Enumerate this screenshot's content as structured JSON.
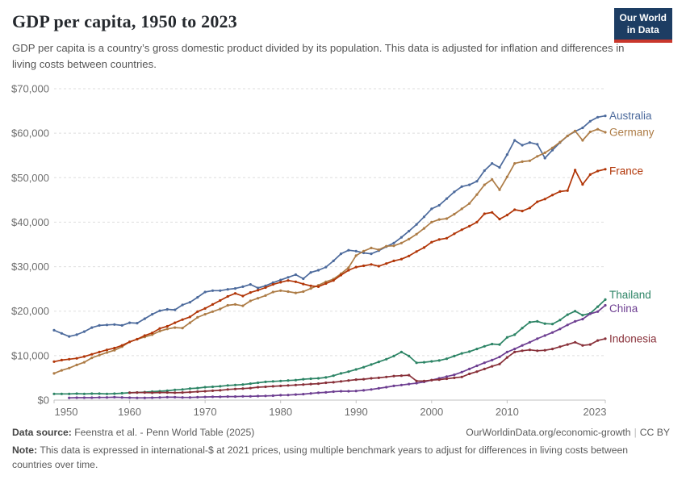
{
  "header": {
    "title": "GDP per capita, 1950 to 2023",
    "subtitle": "GDP per capita is a country’s gross domestic product divided by its population. This data is adjusted for inflation and differences in living costs between countries.",
    "logo_line1": "Our World",
    "logo_line2": "in Data",
    "logo_bg": "#1d3d63",
    "logo_accent": "#c9372c"
  },
  "footer": {
    "source_label": "Data source:",
    "source_text": " Feenstra et al. - Penn World Table (2025)",
    "url_label": "OurWorldinData.org/economic-growth",
    "license": "CC BY",
    "note_label": "Note:",
    "note_text": " This data is expressed in international-$ at 2021 prices, using multiple benchmark years to adjust for differences in living costs between countries over time."
  },
  "chart_data": {
    "type": "line",
    "title": "GDP per capita, 1950 to 2023",
    "xlabel": "",
    "ylabel": "",
    "xlim": [
      1950,
      2023
    ],
    "ylim": [
      0,
      70000
    ],
    "grid": "horizontal-dashed",
    "legend_position": "right-end-labels",
    "x_ticks": [
      1950,
      1960,
      1970,
      1980,
      1990,
      2000,
      2010,
      2023
    ],
    "y_ticks": [
      0,
      10000,
      20000,
      30000,
      40000,
      50000,
      60000,
      70000
    ],
    "y_tick_labels": [
      "$0",
      "$10,000",
      "$20,000",
      "$30,000",
      "$40,000",
      "$50,000",
      "$60,000",
      "$70,000"
    ],
    "series": [
      {
        "name": "Australia",
        "color": "#4C6A9C",
        "start_year": 1950,
        "label_dy": 0,
        "values": [
          15700,
          15000,
          14300,
          14700,
          15400,
          16300,
          16800,
          16900,
          17000,
          16800,
          17400,
          17300,
          18300,
          19300,
          20100,
          20400,
          20300,
          21400,
          22000,
          23100,
          24300,
          24600,
          24600,
          24900,
          25100,
          25500,
          26000,
          25200,
          25700,
          26400,
          27000,
          27600,
          28200,
          27300,
          28700,
          29200,
          29900,
          31300,
          32900,
          33700,
          33500,
          33100,
          32900,
          33600,
          34500,
          35300,
          36600,
          38000,
          39500,
          41200,
          43000,
          43800,
          45300,
          46800,
          48000,
          48400,
          49200,
          51600,
          53200,
          52300,
          55200,
          58400,
          57300,
          57900,
          57500,
          54400,
          56200,
          57900,
          59400,
          60400,
          61200,
          62700,
          63600,
          63900
        ]
      },
      {
        "name": "Germany",
        "color": "#AD7C46",
        "start_year": 1950,
        "label_dy": 0,
        "values": [
          6000,
          6700,
          7200,
          7900,
          8500,
          9500,
          10100,
          10700,
          11200,
          12000,
          13100,
          13700,
          14200,
          14700,
          15500,
          16000,
          16300,
          16200,
          17400,
          18600,
          19300,
          19900,
          20500,
          21300,
          21500,
          21200,
          22300,
          22900,
          23500,
          24300,
          24600,
          24400,
          24100,
          24400,
          25100,
          25800,
          26600,
          27200,
          28400,
          29800,
          32500,
          33500,
          34200,
          33800,
          34600,
          34700,
          35300,
          36200,
          37300,
          38600,
          40000,
          40600,
          40800,
          41800,
          43000,
          44200,
          46200,
          48400,
          49600,
          47300,
          50200,
          53200,
          53600,
          53800,
          54800,
          55600,
          56700,
          58000,
          59400,
          60500,
          58400,
          60300,
          60900,
          60200
        ]
      },
      {
        "name": "France",
        "color": "#B13507",
        "start_year": 1950,
        "label_dy": 2,
        "values": [
          8650,
          9000,
          9200,
          9400,
          9800,
          10300,
          10800,
          11300,
          11700,
          12300,
          13100,
          13700,
          14500,
          15100,
          16100,
          16600,
          17400,
          18100,
          18700,
          19900,
          20600,
          21500,
          22400,
          23300,
          24000,
          23400,
          24200,
          24700,
          25300,
          26000,
          26500,
          26900,
          26600,
          26100,
          25700,
          25500,
          26200,
          26900,
          28100,
          29200,
          29900,
          30200,
          30500,
          30100,
          30700,
          31300,
          31700,
          32400,
          33400,
          34300,
          35500,
          36100,
          36400,
          37400,
          38300,
          39100,
          40000,
          41900,
          42200,
          40700,
          41600,
          42800,
          42500,
          43200,
          44600,
          45200,
          46100,
          46900,
          47100,
          51700,
          48500,
          50700,
          51500,
          51900
        ]
      },
      {
        "name": "Thailand",
        "color": "#2C8465",
        "start_year": 1950,
        "label_dy": -6,
        "values": [
          1400,
          1400,
          1400,
          1450,
          1400,
          1450,
          1450,
          1400,
          1450,
          1550,
          1650,
          1700,
          1800,
          1900,
          2000,
          2100,
          2300,
          2400,
          2600,
          2700,
          2900,
          3000,
          3100,
          3300,
          3400,
          3500,
          3700,
          3900,
          4100,
          4200,
          4300,
          4400,
          4500,
          4700,
          4800,
          4900,
          5100,
          5500,
          6000,
          6400,
          6900,
          7400,
          8000,
          8600,
          9200,
          9900,
          10800,
          9900,
          8400,
          8500,
          8700,
          8900,
          9300,
          9900,
          10500,
          10900,
          11500,
          12100,
          12600,
          12500,
          14100,
          14700,
          16200,
          17500,
          17700,
          17200,
          17100,
          18000,
          19200,
          20000,
          19100,
          19500,
          21000,
          22600
        ]
      },
      {
        "name": "China",
        "color": "#6D3E91",
        "start_year": 1952,
        "label_dy": 4,
        "values": [
          500,
          550,
          550,
          550,
          600,
          600,
          650,
          600,
          550,
          500,
          500,
          550,
          600,
          650,
          650,
          600,
          600,
          650,
          700,
          750,
          750,
          800,
          800,
          850,
          850,
          900,
          950,
          1000,
          1100,
          1150,
          1250,
          1350,
          1500,
          1650,
          1750,
          1900,
          2000,
          2000,
          2050,
          2200,
          2400,
          2650,
          2900,
          3200,
          3400,
          3600,
          3800,
          4100,
          4500,
          4900,
          5300,
          5700,
          6300,
          7000,
          7700,
          8400,
          9000,
          9700,
          10800,
          11500,
          12300,
          13000,
          13800,
          14500,
          15200,
          16000,
          16900,
          17700,
          18200,
          19400,
          19900,
          21300
        ]
      },
      {
        "name": "Indonesia",
        "color": "#883039",
        "start_year": 1960,
        "label_dy": 0,
        "values": [
          1650,
          1700,
          1700,
          1650,
          1700,
          1700,
          1650,
          1700,
          1800,
          1900,
          2000,
          2100,
          2200,
          2400,
          2500,
          2600,
          2700,
          2900,
          3000,
          3100,
          3200,
          3300,
          3400,
          3500,
          3600,
          3700,
          3900,
          4000,
          4200,
          4400,
          4600,
          4700,
          4900,
          5000,
          5200,
          5400,
          5500,
          5600,
          4300,
          4300,
          4500,
          4600,
          4800,
          5000,
          5200,
          5900,
          6400,
          7000,
          7600,
          8100,
          9600,
          10800,
          11100,
          11300,
          11100,
          11200,
          11500,
          12000,
          12500,
          13000,
          12300,
          12500,
          13400,
          13800
        ]
      }
    ]
  }
}
